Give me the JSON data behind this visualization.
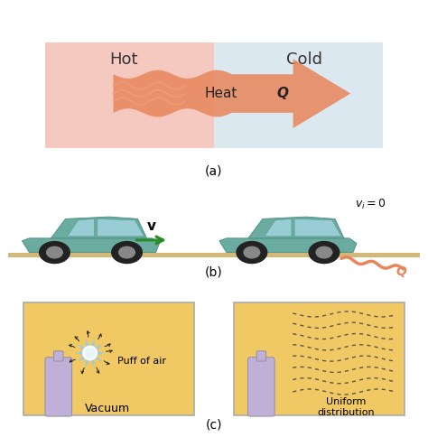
{
  "bg_color": "#ffffff",
  "panel_a": {
    "hot_color": "#f5c8c0",
    "cold_color": "#dce8f0",
    "hot_label": "Hot",
    "cold_label": "Cold",
    "heat_label": "Heat",
    "q_label": "Q",
    "arrow_color": "#e8855a",
    "wave_color": "#e8a07a"
  },
  "panel_b": {
    "car_color": "#6aada0",
    "road_color": "#d4b878",
    "v_label": "v",
    "vf_label": "$v_i = 0$",
    "q_label": "Q",
    "arrow_color": "#2a8a2a",
    "heat_color": "#e8855a"
  },
  "panel_c": {
    "box_color": "#f0c864",
    "box_edge": "#aaaaaa",
    "bottle_color": "#c0b0d8",
    "label1": "Vacuum",
    "label2": "Puff of air",
    "label3": "Uniform\ndistribution",
    "dashed_color": "#444444",
    "burst_color": "#90ccf0",
    "burst_center": "#ffffff"
  },
  "label_a": "(a)",
  "label_b": "(b)",
  "label_c": "(c)"
}
